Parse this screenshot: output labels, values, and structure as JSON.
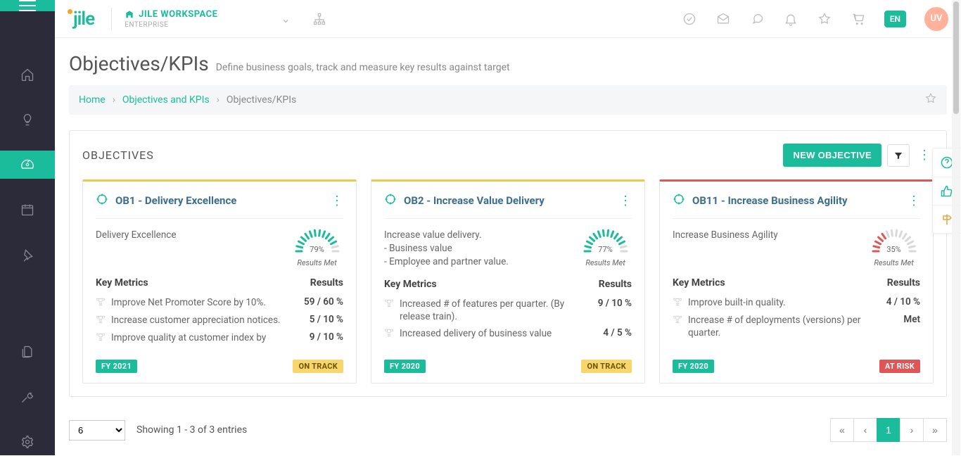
{
  "header": {
    "logo_text": "jile",
    "workspace_title": "JILE WORKSPACE",
    "workspace_sub": "ENTERPRISE",
    "lang": "EN",
    "avatar": "UV"
  },
  "page": {
    "title": "Objectives/KPIs",
    "subtitle": "Define business goals, track and measure key results against target"
  },
  "breadcrumb": {
    "home": "Home",
    "section": "Objectives and KPIs",
    "current": "Objectives/KPIs"
  },
  "panel": {
    "title": "OBJECTIVES",
    "new_button": "NEW OBJECTIVE"
  },
  "cards": [
    {
      "accent": "#f0c94a",
      "title": "OB1 - Delivery Excellence",
      "desc": "Delivery Excellence",
      "pct": "79%",
      "gauge_color": "#1bbc9b",
      "gauge_segments": 12,
      "gauge_label": "Results Met",
      "metrics_label": "Key Metrics",
      "results_label": "Results",
      "metrics": [
        {
          "text": "Improve Net Promoter Score by 10%.",
          "result": "59 / 60 %"
        },
        {
          "text": "Increase customer appreciation notices.",
          "result": "5 / 10 %"
        },
        {
          "text": "Improve quality at customer index by",
          "result": "9 / 10 %"
        }
      ],
      "fy": "FY 2021",
      "status_text": "ON TRACK",
      "status_class": "badge-ontrack"
    },
    {
      "accent": "#f0c94a",
      "title": "OB2 - Increase Value Delivery",
      "desc": "Increase value delivery.\n- Business value\n- Employee and partner value.",
      "pct": "77%",
      "gauge_color": "#1bbc9b",
      "gauge_segments": 12,
      "gauge_label": "Results Met",
      "metrics_label": "Key Metrics",
      "results_label": "Results",
      "metrics": [
        {
          "text": "Increased # of features per quarter. (By release train).",
          "result": "9 / 10 %"
        },
        {
          "text": "Increased delivery of business value",
          "result": "4 / 5 %"
        }
      ],
      "fy": "FY 2020",
      "status_text": "ON TRACK",
      "status_class": "badge-ontrack"
    },
    {
      "accent": "#e05555",
      "title": "OB11 - Increase Business Agility",
      "desc": "Increase Business Agility",
      "pct": "35%",
      "gauge_color": "#e05555",
      "gauge_segments": 5,
      "gauge_label": "Results Met",
      "metrics_label": "Key Metrics",
      "results_label": "Results",
      "metrics": [
        {
          "text": "Improve built-in quality.",
          "result": "4 / 10 %"
        },
        {
          "text": "Increase # of deployments (versions) per quarter.",
          "result": "Met"
        }
      ],
      "fy": "FY 2020",
      "status_text": "AT RISK",
      "status_class": "badge-risk"
    }
  ],
  "footer": {
    "pagesize": "6",
    "showing": "Showing 1 - 3 of 3 entries",
    "page": "1"
  }
}
